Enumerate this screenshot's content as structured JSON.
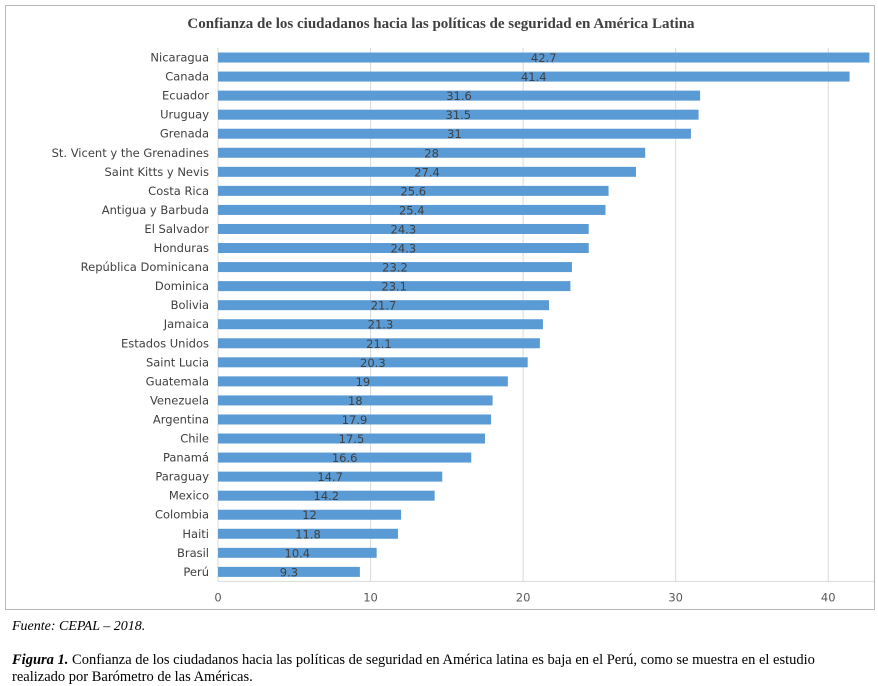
{
  "chart_data": {
    "type": "bar",
    "orientation": "horizontal",
    "title": "Confianza de los ciudadanos hacia las políticas de seguridad en América Latina",
    "categories": [
      "Nicaragua",
      "Canada",
      "Ecuador",
      "Uruguay",
      "Grenada",
      "St. Vicent y the Grenadines",
      "Saint Kitts y Nevis",
      "Costa Rica",
      "Antigua y Barbuda",
      "El Salvador",
      "Honduras",
      "República Dominicana",
      "Dominica",
      "Bolivia",
      "Jamaica",
      "Estados Unidos",
      "Saint Lucia",
      "Guatemala",
      "Venezuela",
      "Argentina",
      "Chile",
      "Panamá",
      "Paraguay",
      "Mexico",
      "Colombia",
      "Haiti",
      "Brasil",
      "Perú"
    ],
    "values": [
      42.7,
      41.4,
      31.6,
      31.5,
      31,
      28,
      27.4,
      25.6,
      25.4,
      24.3,
      24.3,
      23.2,
      23.1,
      21.7,
      21.3,
      21.1,
      20.3,
      19,
      18,
      17.9,
      17.5,
      16.6,
      14.7,
      14.2,
      12,
      11.8,
      10.4,
      9.3
    ],
    "xlim": [
      0,
      43
    ],
    "xticks": [
      0,
      10,
      20,
      30,
      40
    ],
    "grid": true,
    "legend": "none",
    "bar_color": "#5b9bd5",
    "grid_color": "#d9d9d9"
  },
  "source": "Fuente: CEPAL – 2018.",
  "caption": {
    "label": "Figura 1.",
    "text": " Confianza de los ciudadanos hacia las políticas de seguridad en América latina es baja en el Perú, como se muestra en el estudio realizado por Barómetro de las Américas."
  }
}
